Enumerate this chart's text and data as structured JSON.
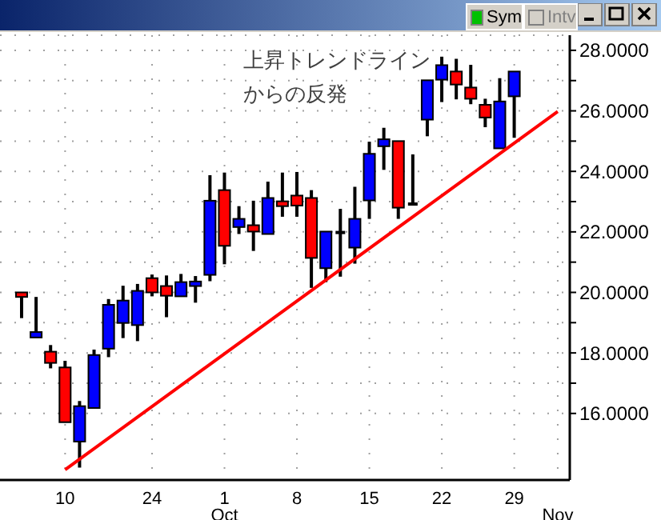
{
  "chart_data": {
    "type": "candlestick",
    "categories": [
      null,
      null,
      null,
      "10",
      null,
      null,
      null,
      null,
      null,
      "24",
      null,
      null,
      null,
      null,
      "1\nOct",
      null,
      null,
      null,
      null,
      "8",
      null,
      null,
      null,
      null,
      "15",
      null,
      null,
      null,
      null,
      "22",
      null,
      null,
      null,
      null,
      "29",
      null,
      null,
      "\nNov"
    ],
    "ohlc": [
      [
        20.0,
        20.0,
        19.15,
        19.85
      ],
      [
        18.51,
        19.85,
        18.51,
        18.69
      ],
      [
        18.04,
        18.26,
        17.49,
        17.67
      ],
      [
        17.52,
        17.74,
        15.71,
        15.71
      ],
      [
        15.07,
        16.41,
        14.21,
        16.24
      ],
      [
        16.18,
        18.11,
        16.18,
        17.93
      ],
      [
        18.14,
        19.78,
        17.86,
        19.59
      ],
      [
        18.99,
        20.22,
        18.49,
        19.73
      ],
      [
        18.92,
        20.28,
        18.39,
        20.05
      ],
      [
        20.47,
        20.59,
        19.87,
        20.0
      ],
      [
        20.21,
        20.56,
        19.18,
        19.89
      ],
      [
        19.87,
        20.61,
        19.87,
        20.34
      ],
      [
        20.21,
        20.54,
        19.66,
        20.36
      ],
      [
        20.58,
        23.87,
        20.37,
        23.03
      ],
      [
        23.38,
        23.96,
        20.93,
        21.54
      ],
      [
        22.16,
        22.85,
        21.93,
        22.43
      ],
      [
        22.22,
        23.03,
        21.37,
        22.01
      ],
      [
        21.93,
        23.66,
        21.93,
        23.12
      ],
      [
        23.01,
        23.96,
        22.5,
        22.85
      ],
      [
        23.2,
        23.98,
        22.5,
        22.87
      ],
      [
        23.12,
        23.38,
        20.15,
        21.14
      ],
      [
        20.8,
        22.01,
        20.34,
        22.01
      ],
      [
        21.95,
        22.76,
        20.52,
        21.98
      ],
      [
        21.48,
        23.49,
        20.95,
        22.43
      ],
      [
        23.04,
        24.98,
        22.43,
        24.58
      ],
      [
        24.83,
        25.44,
        24.05,
        25.06
      ],
      [
        25.0,
        25.0,
        22.43,
        22.8
      ],
      [
        22.92,
        24.56,
        22.92,
        22.92
      ],
      [
        25.71,
        27.01,
        25.16,
        27.01
      ],
      [
        27.03,
        27.79,
        26.29,
        27.51
      ],
      [
        27.3,
        27.72,
        26.38,
        26.87
      ],
      [
        26.77,
        27.52,
        26.22,
        26.4
      ],
      [
        26.2,
        26.4,
        25.46,
        25.78
      ],
      [
        24.76,
        27.08,
        24.76,
        26.31
      ],
      [
        26.48,
        27.3,
        25.11,
        27.3
      ],
      null,
      null,
      null
    ],
    "colors": [
      "#ff0000",
      "#0000ff",
      "#ff0000",
      "#ff0000",
      "#0000ff",
      "#0000ff",
      "#0000ff",
      "#0000ff",
      "#0000ff",
      "#ff0000",
      "#ff0000",
      "#0000ff",
      "#0000ff",
      "#0000ff",
      "#ff0000",
      "#0000ff",
      "#ff0000",
      "#0000ff",
      "#ff0000",
      "#ff0000",
      "#ff0000",
      "#0000ff",
      "#000000",
      "#0000ff",
      "#0000ff",
      "#0000ff",
      "#ff0000",
      "#000000",
      "#0000ff",
      "#0000ff",
      "#ff0000",
      "#ff0000",
      "#ff0000",
      "#0000ff",
      "#0000ff",
      null,
      null,
      null
    ],
    "series": [
      {
        "type": "line",
        "color": "#ff0000",
        "values": [
          null,
          null,
          null,
          14.14,
          null,
          null,
          null,
          null,
          null,
          null,
          null,
          null,
          null,
          null,
          null,
          null,
          null,
          null,
          null,
          null,
          null,
          null,
          null,
          null,
          null,
          null,
          null,
          null,
          null,
          null,
          null,
          null,
          null,
          null,
          null,
          null,
          null,
          25.98
        ]
      }
    ],
    "ylim": [
      13.8,
      28.5
    ],
    "yticks": [
      {
        "value": 16,
        "label": "16.0000"
      },
      {
        "value": 17,
        "label": null
      },
      {
        "value": 18,
        "label": "18.0000"
      },
      {
        "value": 19,
        "label": null
      },
      {
        "value": 20,
        "label": "20.0000"
      },
      {
        "value": 21,
        "label": null
      },
      {
        "value": 22,
        "label": "22.0000"
      },
      {
        "value": 23,
        "label": null
      },
      {
        "value": 24,
        "label": "24.0000"
      },
      {
        "value": 25,
        "label": null
      },
      {
        "value": 26,
        "label": "26.0000"
      },
      {
        "value": 27,
        "label": null
      },
      {
        "value": 28,
        "label": "28.0000"
      }
    ],
    "grid": true,
    "annotations": [
      "上昇トレンドライン",
      "からの反発",
      "Sym",
      "Intv"
    ]
  }
}
